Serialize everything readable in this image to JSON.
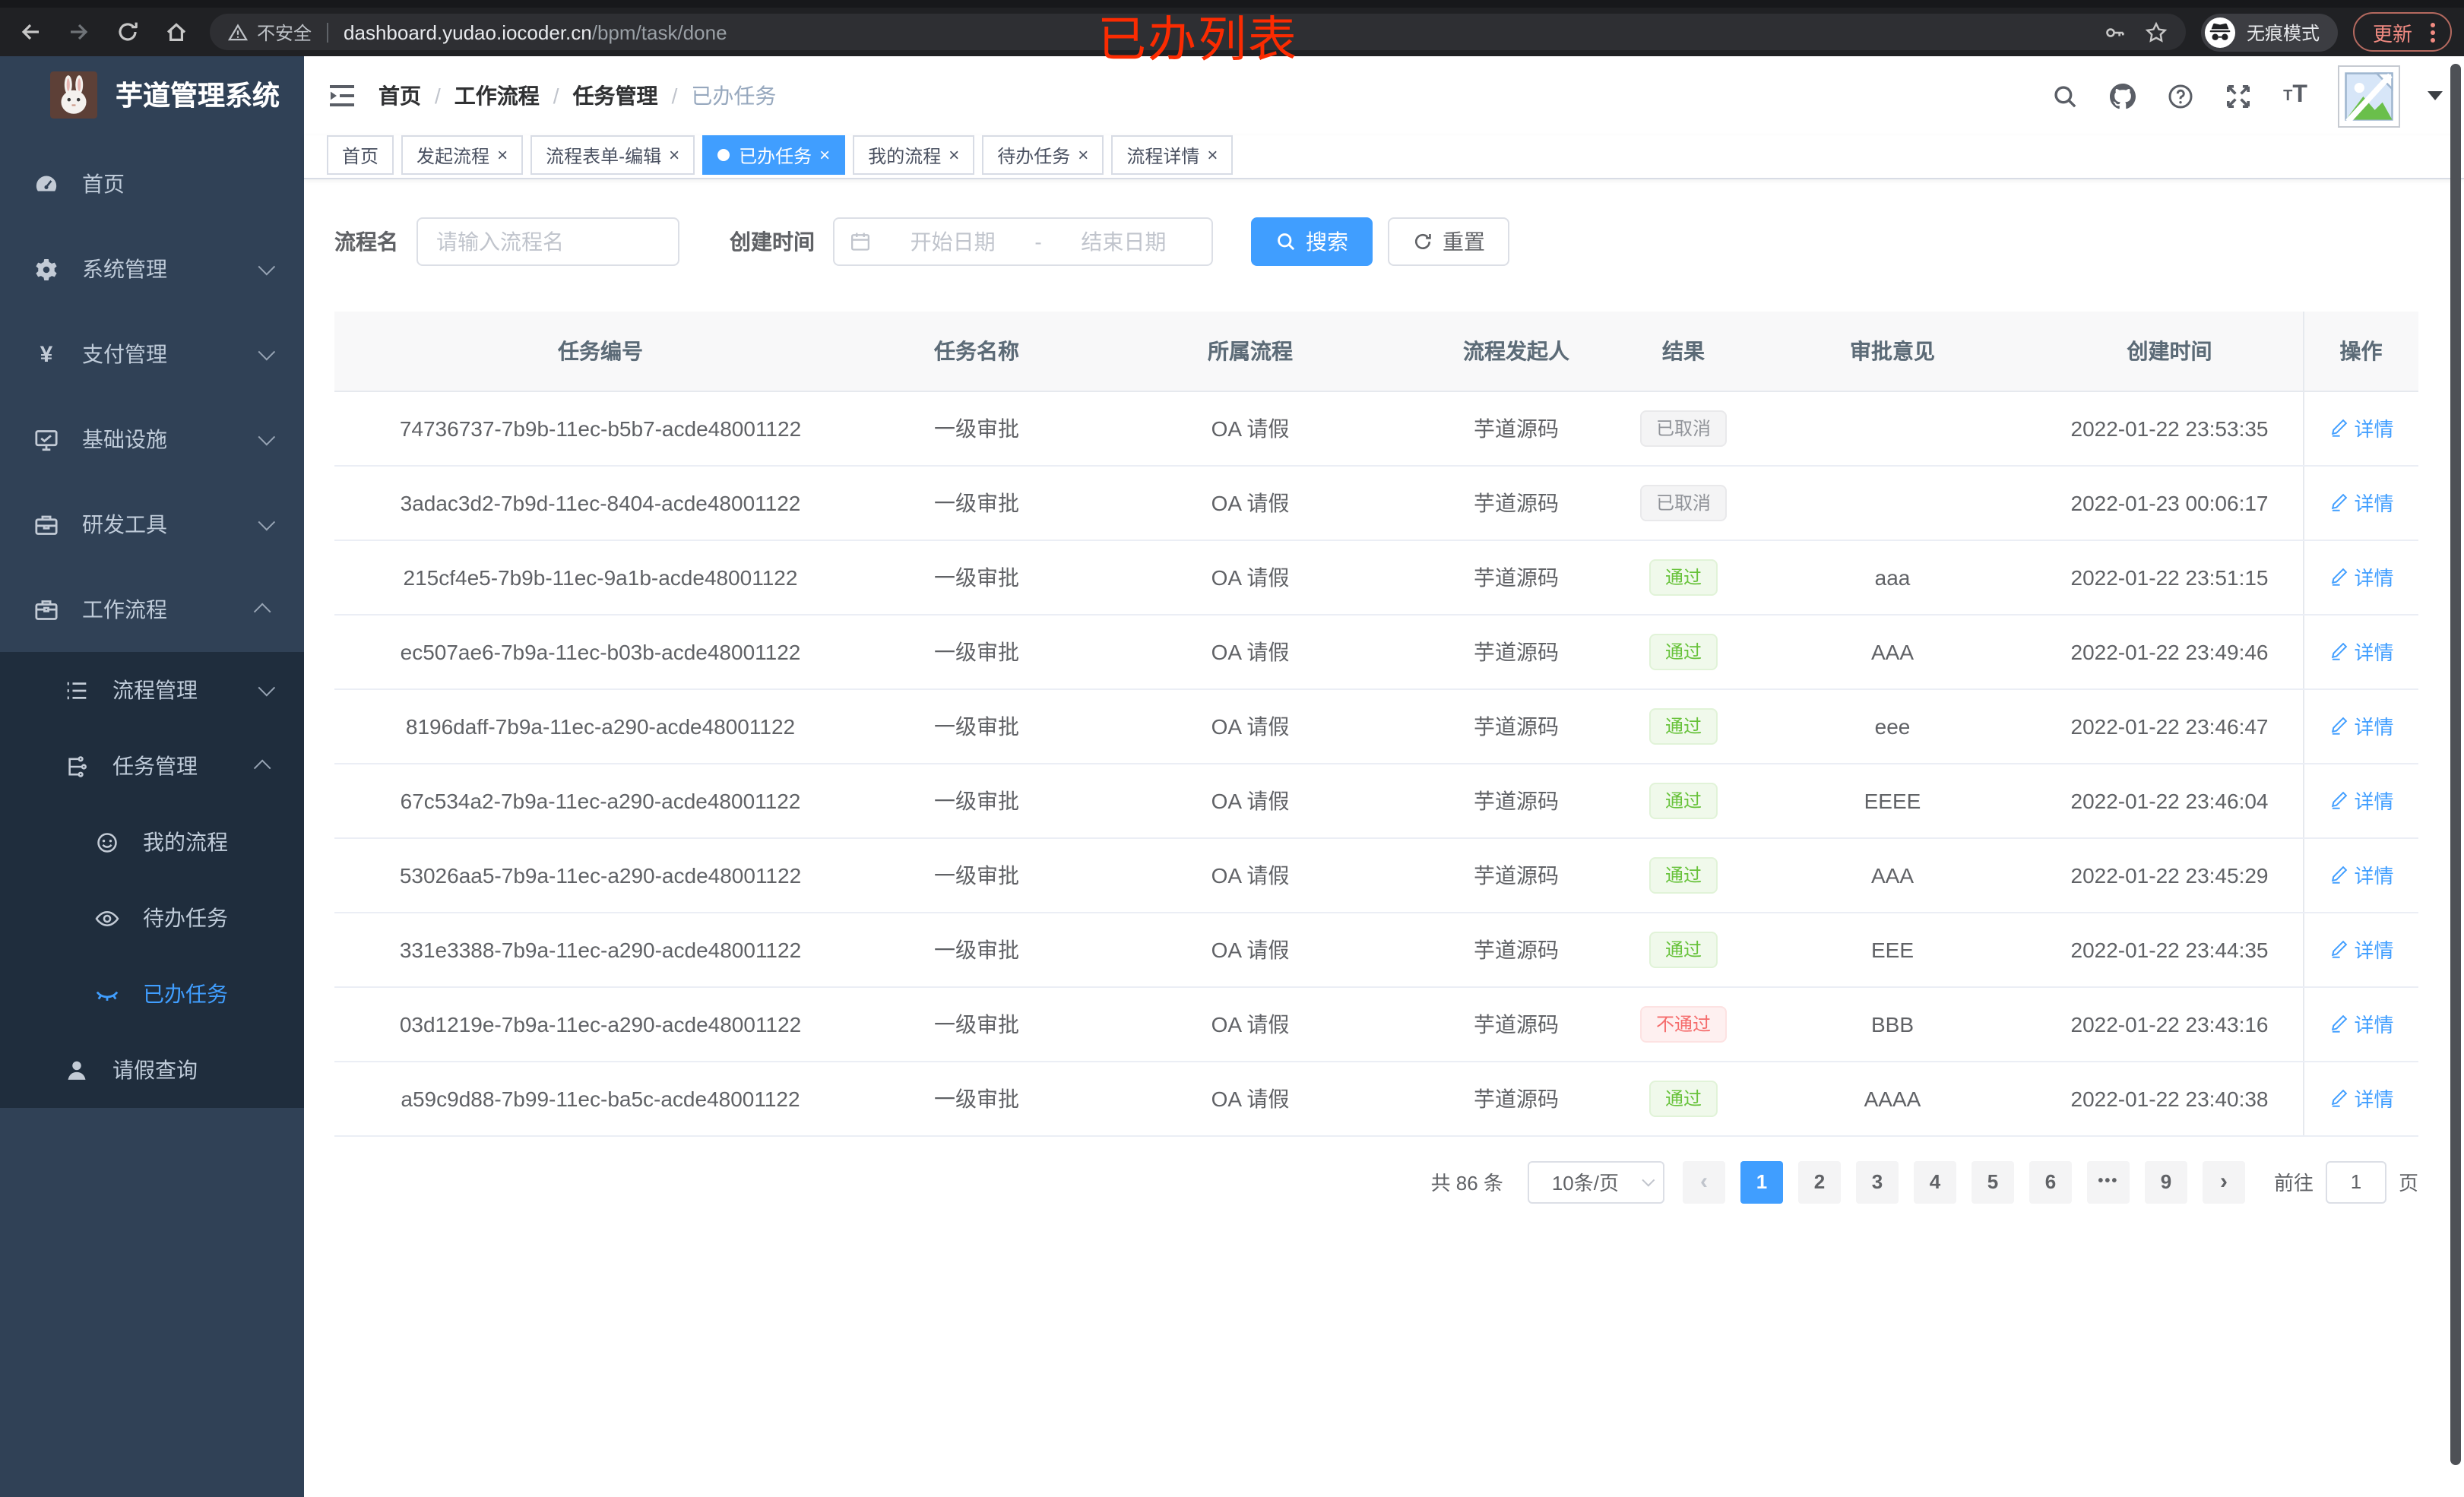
{
  "browser": {
    "security_text": "不安全",
    "url_host": "dashboard.yudao.iocoder.cn",
    "url_path": "/bpm/task/done",
    "overlay_title": "已办列表",
    "incognito_label": "无痕模式",
    "update_label": "更新"
  },
  "colors": {
    "accent_blue": "#409eff",
    "sidebar_bg": "#304156",
    "submenu_bg": "#1f2d3d",
    "success_green": "#67c23a",
    "danger_red": "#f56c6c",
    "info_gray": "#909399",
    "overlay_red": "#fb2b01"
  },
  "sidebar": {
    "app_title": "芋道管理系统",
    "logo_icon": "rabbit-logo",
    "items": [
      {
        "label": "首页",
        "icon": "dashboard-icon",
        "level": 1,
        "chevron": "",
        "sub": false,
        "active": false
      },
      {
        "label": "系统管理",
        "icon": "gear-icon",
        "level": 1,
        "chevron": "down",
        "sub": false,
        "active": false
      },
      {
        "label": "支付管理",
        "icon": "yen-icon",
        "level": 1,
        "chevron": "down",
        "sub": false,
        "active": false
      },
      {
        "label": "基础设施",
        "icon": "monitor-icon",
        "level": 1,
        "chevron": "down",
        "sub": false,
        "active": false
      },
      {
        "label": "研发工具",
        "icon": "toolbox-icon",
        "level": 1,
        "chevron": "down",
        "sub": false,
        "active": false
      },
      {
        "label": "工作流程",
        "icon": "briefcase-icon",
        "level": 1,
        "chevron": "up",
        "sub": false,
        "active": false
      },
      {
        "label": "流程管理",
        "icon": "list-icon",
        "level": 2,
        "chevron": "down",
        "sub": true,
        "active": false
      },
      {
        "label": "任务管理",
        "icon": "tree-icon",
        "level": 2,
        "chevron": "up",
        "sub": true,
        "active": false
      },
      {
        "label": "我的流程",
        "icon": "face-icon",
        "level": 3,
        "chevron": "",
        "sub": true,
        "active": false
      },
      {
        "label": "待办任务",
        "icon": "eye-icon",
        "level": 3,
        "chevron": "",
        "sub": true,
        "active": false
      },
      {
        "label": "已办任务",
        "icon": "eye-closed-icon",
        "level": 3,
        "chevron": "",
        "sub": true,
        "active": true
      },
      {
        "label": "请假查询",
        "icon": "user-icon",
        "level": 2,
        "chevron": "",
        "sub": true,
        "active": false
      }
    ]
  },
  "navbar": {
    "breadcrumb": [
      "首页",
      "工作流程",
      "任务管理",
      "已办任务"
    ],
    "tools": [
      "search-icon",
      "github-icon",
      "question-icon",
      "fullscreen-icon",
      "fontsize-icon"
    ]
  },
  "tabs": [
    {
      "label": "首页",
      "closable": false,
      "active": false
    },
    {
      "label": "发起流程",
      "closable": true,
      "active": false
    },
    {
      "label": "流程表单-编辑",
      "closable": true,
      "active": false
    },
    {
      "label": "已办任务",
      "closable": true,
      "active": true
    },
    {
      "label": "我的流程",
      "closable": true,
      "active": false
    },
    {
      "label": "待办任务",
      "closable": true,
      "active": false
    },
    {
      "label": "流程详情",
      "closable": true,
      "active": false
    }
  ],
  "filters": {
    "name_label": "流程名",
    "name_placeholder": "请输入流程名",
    "date_label": "创建时间",
    "date_start_placeholder": "开始日期",
    "date_separator": "-",
    "date_end_placeholder": "结束日期",
    "search_label": "搜索",
    "reset_label": "重置"
  },
  "table": {
    "columns": [
      "任务编号",
      "任务名称",
      "所属流程",
      "流程发起人",
      "结果",
      "审批意见",
      "创建时间",
      "操作"
    ],
    "detail_label": "详情",
    "rows": [
      {
        "id": "74736737-7b9b-11ec-b5b7-acde48001122",
        "name": "一级审批",
        "process": "OA 请假",
        "starter": "芋道源码",
        "result": "已取消",
        "result_type": "info",
        "comment": "",
        "time": "2022-01-22 23:53:35"
      },
      {
        "id": "3adac3d2-7b9d-11ec-8404-acde48001122",
        "name": "一级审批",
        "process": "OA 请假",
        "starter": "芋道源码",
        "result": "已取消",
        "result_type": "info",
        "comment": "",
        "time": "2022-01-23 00:06:17"
      },
      {
        "id": "215cf4e5-7b9b-11ec-9a1b-acde48001122",
        "name": "一级审批",
        "process": "OA 请假",
        "starter": "芋道源码",
        "result": "通过",
        "result_type": "success",
        "comment": "aaa",
        "time": "2022-01-22 23:51:15"
      },
      {
        "id": "ec507ae6-7b9a-11ec-b03b-acde48001122",
        "name": "一级审批",
        "process": "OA 请假",
        "starter": "芋道源码",
        "result": "通过",
        "result_type": "success",
        "comment": "AAA",
        "time": "2022-01-22 23:49:46"
      },
      {
        "id": "8196daff-7b9a-11ec-a290-acde48001122",
        "name": "一级审批",
        "process": "OA 请假",
        "starter": "芋道源码",
        "result": "通过",
        "result_type": "success",
        "comment": "eee",
        "time": "2022-01-22 23:46:47"
      },
      {
        "id": "67c534a2-7b9a-11ec-a290-acde48001122",
        "name": "一级审批",
        "process": "OA 请假",
        "starter": "芋道源码",
        "result": "通过",
        "result_type": "success",
        "comment": "EEEE",
        "time": "2022-01-22 23:46:04"
      },
      {
        "id": "53026aa5-7b9a-11ec-a290-acde48001122",
        "name": "一级审批",
        "process": "OA 请假",
        "starter": "芋道源码",
        "result": "通过",
        "result_type": "success",
        "comment": "AAA",
        "time": "2022-01-22 23:45:29"
      },
      {
        "id": "331e3388-7b9a-11ec-a290-acde48001122",
        "name": "一级审批",
        "process": "OA 请假",
        "starter": "芋道源码",
        "result": "通过",
        "result_type": "success",
        "comment": "EEE",
        "time": "2022-01-22 23:44:35"
      },
      {
        "id": "03d1219e-7b9a-11ec-a290-acde48001122",
        "name": "一级审批",
        "process": "OA 请假",
        "starter": "芋道源码",
        "result": "不通过",
        "result_type": "danger",
        "comment": "BBB",
        "time": "2022-01-22 23:43:16"
      },
      {
        "id": "a59c9d88-7b99-11ec-ba5c-acde48001122",
        "name": "一级审批",
        "process": "OA 请假",
        "starter": "芋道源码",
        "result": "通过",
        "result_type": "success",
        "comment": "AAAA",
        "time": "2022-01-22 23:40:38"
      }
    ]
  },
  "pagination": {
    "total_text": "共 86 条",
    "page_size_text": "10条/页",
    "prev_label": "‹",
    "next_label": "›",
    "pages": [
      "1",
      "2",
      "3",
      "4",
      "5",
      "6",
      "•••",
      "9"
    ],
    "active_page": "1",
    "goto_label": "前往",
    "goto_value": "1",
    "goto_suffix": "页"
  }
}
